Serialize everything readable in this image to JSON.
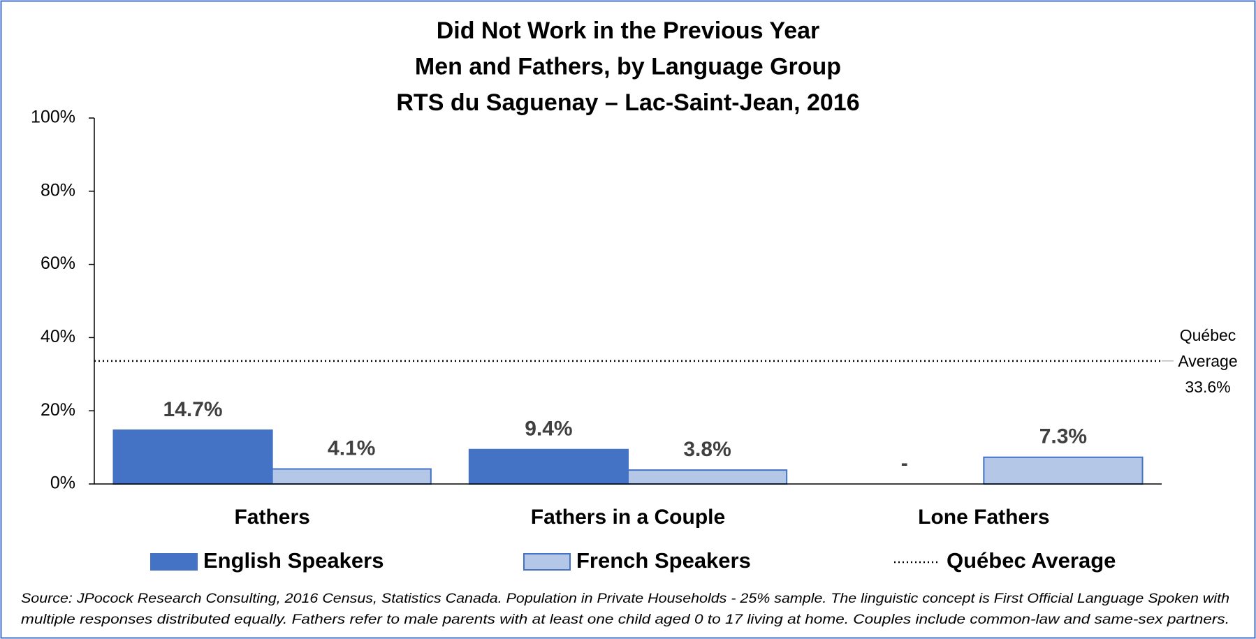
{
  "chart_data": {
    "type": "bar",
    "title": [
      "Did Not Work in the Previous Year",
      "Men and Fathers, by Language Group",
      "RTS du Saguenay – Lac-Saint-Jean, 2016"
    ],
    "categories": [
      "Fathers",
      "Fathers in a Couple",
      "Lone Fathers"
    ],
    "series": [
      {
        "name": "English Speakers",
        "color": "#4472c4",
        "values": [
          14.7,
          9.4,
          null
        ],
        "value_labels": [
          "14.7%",
          "9.4%",
          "-"
        ]
      },
      {
        "name": "French Speakers",
        "color": "#b4c7e7",
        "values": [
          4.1,
          3.8,
          7.3
        ],
        "value_labels": [
          "4.1%",
          "3.8%",
          "7.3%"
        ]
      }
    ],
    "reference_line": {
      "name": "Québec Average",
      "value": 33.6,
      "label_lines": [
        "Québec",
        "Average",
        "33.6%"
      ]
    },
    "ylim": [
      0,
      100
    ],
    "yticks": [
      {
        "value": 0,
        "label": "0%"
      },
      {
        "value": 20,
        "label": "20%"
      },
      {
        "value": 40,
        "label": "40%"
      },
      {
        "value": 60,
        "label": "60%"
      },
      {
        "value": 80,
        "label": "80%"
      },
      {
        "value": 100,
        "label": "100%"
      }
    ],
    "grid": false,
    "legend": "bottom",
    "source": [
      "Source: JPocock Research Consulting, 2016 Census, Statistics Canada. Population in Private Households - 25% sample. The linguistic concept is First Official Language Spoken with",
      "multiple responses distributed equally. Fathers refer to male parents with at least one child aged 0 to 17 living at home. Couples include common-law and same-sex partners."
    ]
  }
}
